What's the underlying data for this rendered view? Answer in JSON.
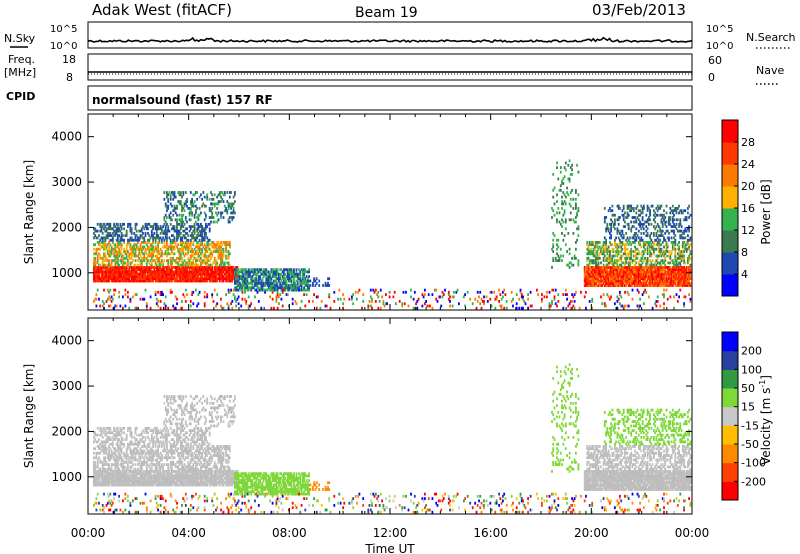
{
  "header": {
    "station": "Adak West (fitACF)",
    "beam": "Beam 19",
    "date": "03/Feb/2013"
  },
  "strip_labels": {
    "nsky": "N.Sky",
    "nsky_max": "10^5",
    "nsky_min": "10^0",
    "nsearch": "N.Search",
    "nsearch_max": "10^5",
    "nsearch_min": "10^0",
    "freq": "Freq.",
    "freq_unit": "[MHz]",
    "freq_max": "18",
    "freq_min": "8",
    "nave": "Nave",
    "nave_max": "60",
    "nave_min": "0",
    "cpid": "CPID",
    "cpid_value": "normalsound (fast) 157 RF"
  },
  "colors": {
    "power_scale": [
      "#0000ff",
      "#1f49b0",
      "#3a7a4e",
      "#33b24d",
      "#ffb000",
      "#ff7a00",
      "#ff3800",
      "#ff0000"
    ],
    "velocity_scale": [
      "#ff0000",
      "#ff4000",
      "#ff8a00",
      "#ffbe00",
      "#c8c8c8",
      "#7fd83a",
      "#2f9a40",
      "#2840a0",
      "#0000ff"
    ],
    "ground_scatter": "#bdbdbd"
  },
  "chart_data": [
    {
      "type": "heatmap",
      "name": "power",
      "ylabel": "Slant Range [km]",
      "ylim": [
        180,
        4500
      ],
      "yticks": [
        "1000",
        "2000",
        "3000",
        "4000"
      ],
      "xlabel": "",
      "xticks": [
        "00:00",
        "04:00",
        "08:00",
        "12:00",
        "16:00",
        "20:00",
        "00:00"
      ],
      "xlim_hours": [
        0,
        24
      ],
      "colorbar_label": "Power [dB]",
      "colorbar_ticks": [
        "4",
        "8",
        "12",
        "16",
        "20",
        "24",
        "28"
      ],
      "colorbar_range": [
        0,
        32
      ]
    },
    {
      "type": "heatmap",
      "name": "velocity",
      "ylabel": "Slant Range [km]",
      "ylim": [
        180,
        4500
      ],
      "yticks": [
        "1000",
        "2000",
        "3000",
        "4000"
      ],
      "xlabel": "Time UT",
      "xticks": [
        "00:00",
        "04:00",
        "08:00",
        "12:00",
        "16:00",
        "20:00",
        "00:00"
      ],
      "xlim_hours": [
        0,
        24
      ],
      "colorbar_label": "Velocity [m s^-1]",
      "colorbar_ticks": [
        "-200",
        "-100",
        "-50",
        "-15",
        "15",
        "50",
        "100",
        "200"
      ]
    }
  ]
}
